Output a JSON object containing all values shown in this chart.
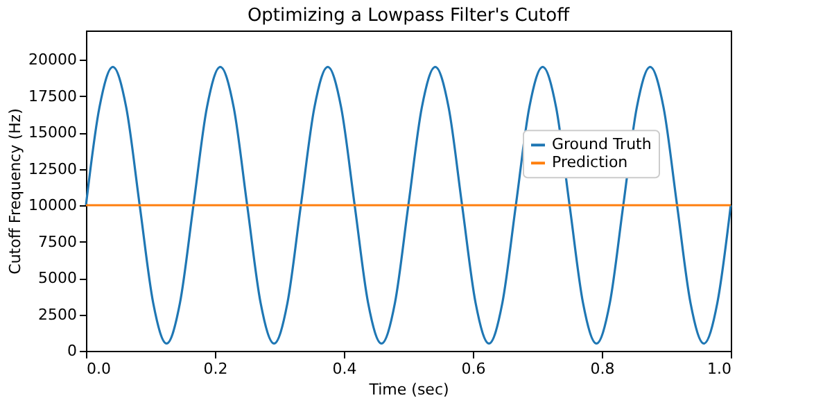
{
  "chart_data": {
    "type": "line",
    "title": "Optimizing a Lowpass Filter's Cutoff",
    "xlabel": "Time (sec)",
    "ylabel": "Cutoff Frequency (Hz)",
    "xlim": [
      0,
      1
    ],
    "xticks": [
      {
        "value": 0,
        "label": "0.0"
      },
      {
        "value": 0.2,
        "label": "0.2"
      },
      {
        "value": 0.4,
        "label": "0.4"
      },
      {
        "value": 0.6,
        "label": "0.6"
      },
      {
        "value": 0.8,
        "label": "0.8"
      },
      {
        "value": 1,
        "label": "1.0"
      }
    ],
    "ylim": [
      0,
      22000
    ],
    "yticks": [
      0,
      2500,
      5000,
      7500,
      10000,
      12500,
      15000,
      17500,
      20000
    ],
    "grid": false,
    "legend": "right",
    "marker": "none",
    "line_style": "solid",
    "series": [
      {
        "name": "Ground Truth",
        "color": "#1f77b4",
        "x": [
          0,
          0.0208,
          0.0417,
          0.0625,
          0.0833,
          0.1042,
          0.125,
          0.1458,
          0.1667,
          0.1875,
          0.2083,
          0.2292,
          0.25,
          0.2708,
          0.2917,
          0.3125,
          0.3333,
          0.3542,
          0.375,
          0.3958,
          0.4167,
          0.4375,
          0.4583,
          0.4792,
          0.5,
          0.5208,
          0.5417,
          0.5625,
          0.5833,
          0.6042,
          0.625,
          0.6458,
          0.6667,
          0.6875,
          0.7083,
          0.7292,
          0.75,
          0.7708,
          0.7917,
          0.8125,
          0.8333,
          0.8542,
          0.875,
          0.8958,
          0.9167,
          0.9375,
          0.9583,
          0.9792,
          1.0
        ],
        "values": [
          10000,
          16700,
          19500,
          16700,
          10000,
          3300,
          500,
          3300,
          10000,
          16700,
          19500,
          16700,
          10000,
          3300,
          500,
          3300,
          10000,
          16700,
          19500,
          16700,
          10000,
          3300,
          500,
          3300,
          10000,
          16700,
          19500,
          16700,
          10000,
          3300,
          500,
          3300,
          10000,
          16700,
          19500,
          16700,
          10000,
          3300,
          500,
          3300,
          10000,
          16700,
          19500,
          16700,
          10000,
          3300,
          500,
          3300,
          10000
        ]
      },
      {
        "name": "Prediction",
        "color": "#ff7f0e",
        "x": [
          0,
          1
        ],
        "values": [
          10000,
          10000
        ]
      }
    ]
  }
}
